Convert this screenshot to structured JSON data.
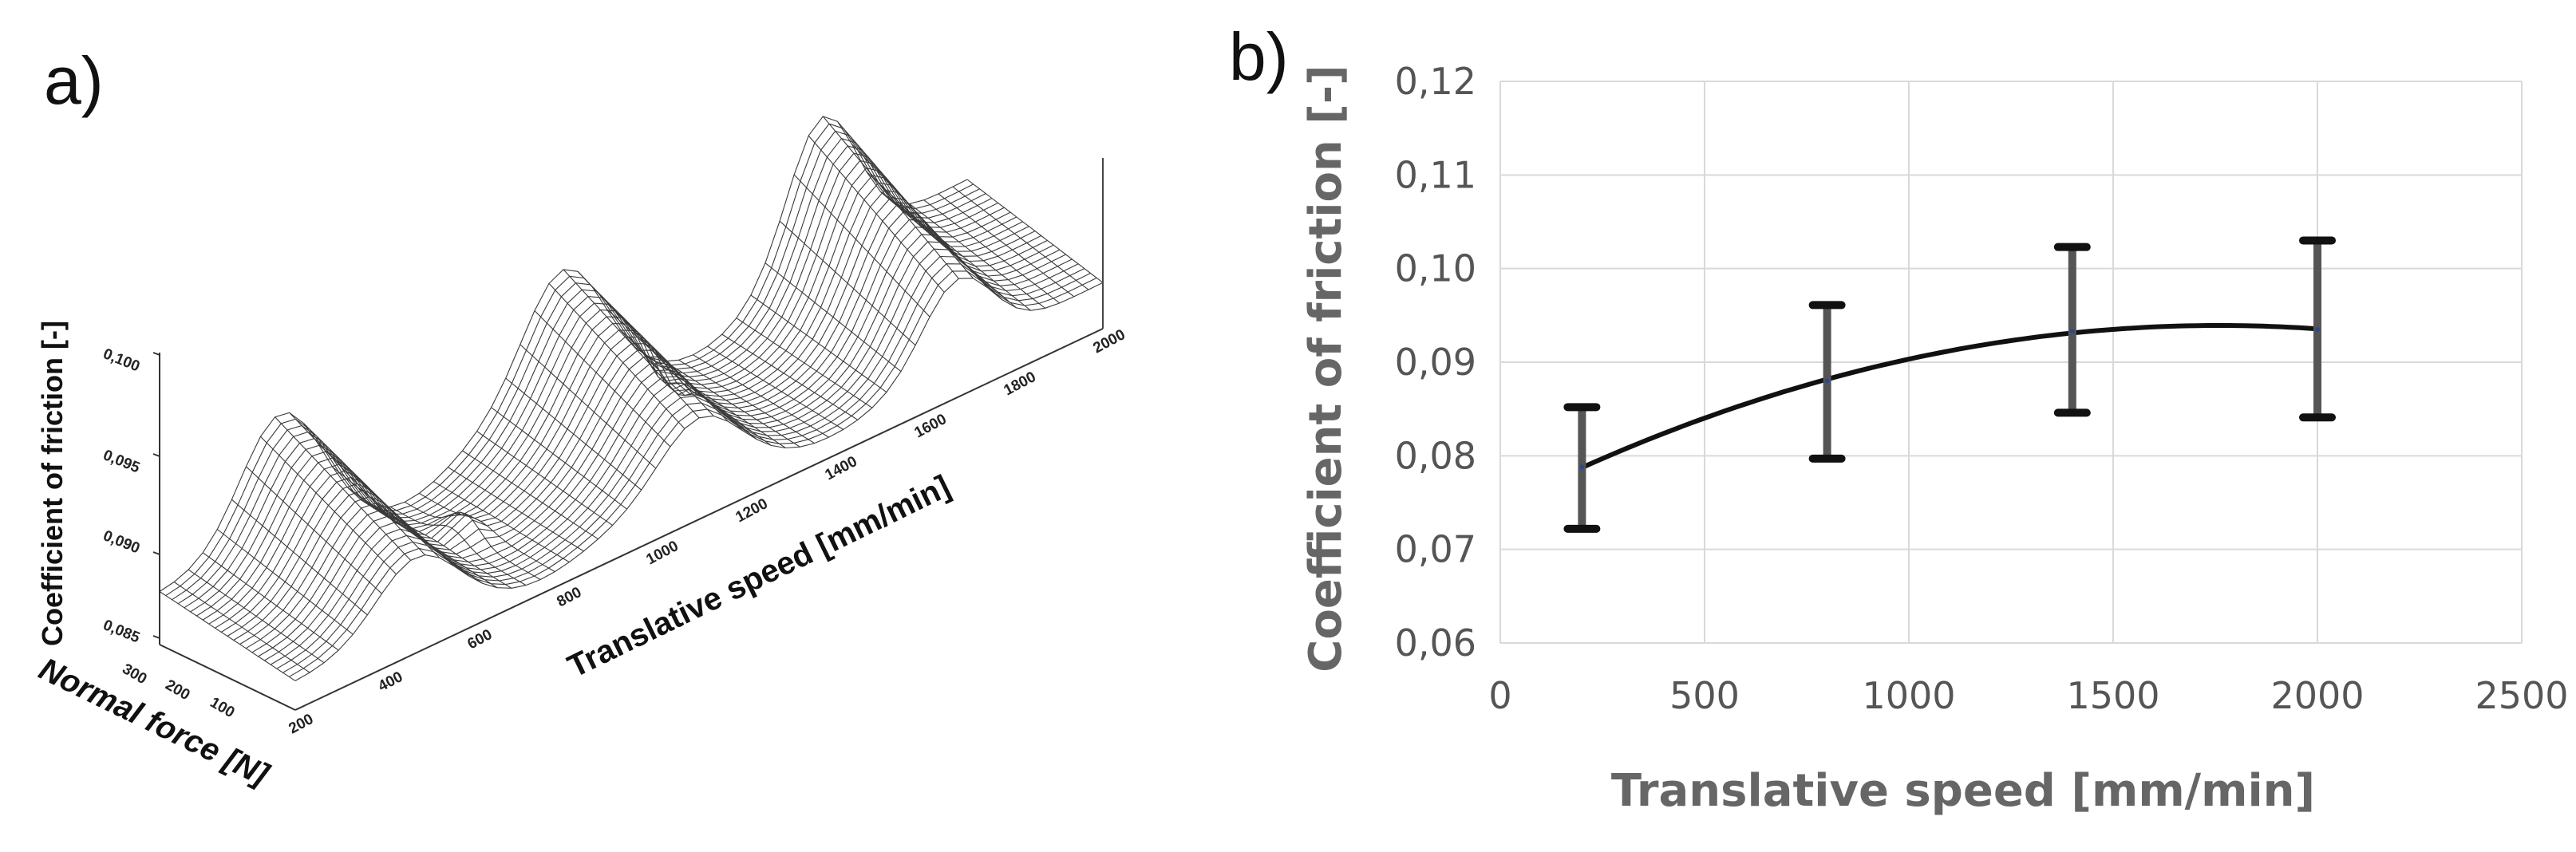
{
  "panel_a": {
    "label": "a)",
    "chart_type": "surface",
    "zlabel": "Coefficient of friction [-]",
    "xlabel": "Translative speed [mm/min]",
    "ylabel": "Normal force [N]",
    "z_ticks": [
      "0,100",
      "0,095",
      "0,090",
      "0,085"
    ],
    "x_ticks": [
      "200",
      "400",
      "600",
      "800",
      "1000",
      "1200",
      "1400",
      "1600",
      "1800",
      "2000"
    ],
    "y_ticks": [
      "300",
      "200",
      "100"
    ],
    "zlim": [
      0.085,
      0.1
    ],
    "xlim": [
      200,
      2000
    ],
    "ylim": [
      0,
      300
    ]
  },
  "panel_b": {
    "label": "b)"
  },
  "chart_data": [
    {
      "type": "surface",
      "title": "",
      "xlabel": "Translative speed [mm/min]",
      "ylabel": "Normal force [N]",
      "zlabel": "Coefficient of friction [-]",
      "x_ticks": [
        200,
        400,
        600,
        800,
        1000,
        1200,
        1400,
        1600,
        1800,
        2000
      ],
      "y_ticks": [
        100,
        200,
        300
      ],
      "z_ticks": [
        0.085,
        0.09,
        0.095,
        0.1
      ],
      "zlim": [
        0.085,
        0.1
      ]
    },
    {
      "type": "line",
      "title": "",
      "xlabel": "Translative speed [mm/min]",
      "ylabel": "Coefficient of friction [-]",
      "xlim": [
        0,
        2500
      ],
      "ylim": [
        0.06,
        0.12
      ],
      "x_ticks": [
        0,
        500,
        1000,
        1500,
        2000,
        2500
      ],
      "x_tick_labels": [
        "0",
        "500",
        "1000",
        "1500",
        "2000",
        "2500"
      ],
      "y_ticks": [
        0.06,
        0.07,
        0.08,
        0.09,
        0.1,
        0.11,
        0.12
      ],
      "y_tick_labels": [
        "0,06",
        "0,07",
        "0,08",
        "0,09",
        "0,10",
        "0,11",
        "0,12"
      ],
      "grid": true,
      "series": [
        {
          "name": "Coefficient of friction",
          "x": [
            200,
            800,
            1400,
            2000
          ],
          "y": [
            0.0788,
            0.088,
            0.0933,
            0.0935
          ],
          "error_low": [
            0.0722,
            0.0797,
            0.0846,
            0.0841
          ],
          "error_high": [
            0.0852,
            0.0961,
            0.1023,
            0.103
          ],
          "fit": "quadratic"
        }
      ]
    }
  ]
}
